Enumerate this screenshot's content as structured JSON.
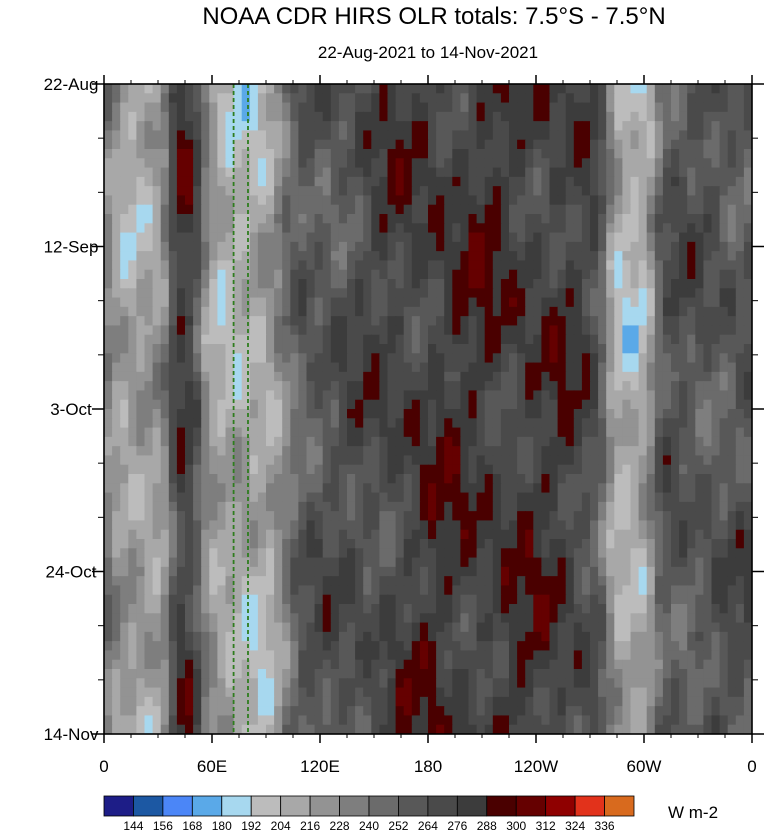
{
  "chart_data": {
    "type": "heatmap",
    "title": "NOAA CDR HIRS OLR totals: 7.5°S - 7.5°N",
    "subtitle": "22-Aug-2021 to 14-Nov-2021",
    "units": "W m-2",
    "x_ticks": [
      {
        "lon": 0,
        "label": "0"
      },
      {
        "lon": 60,
        "label": "60E"
      },
      {
        "lon": 120,
        "label": "120E"
      },
      {
        "lon": 180,
        "label": "180"
      },
      {
        "lon": 240,
        "label": "120W"
      },
      {
        "lon": 300,
        "label": "60W"
      },
      {
        "lon": 360,
        "label": "0"
      }
    ],
    "xlim": [
      0,
      360
    ],
    "y_ticks": [
      {
        "day": 0,
        "label": "22-Aug"
      },
      {
        "day": 21,
        "label": "12-Sep"
      },
      {
        "day": 42,
        "label": "3-Oct"
      },
      {
        "day": 63,
        "label": "24-Oct"
      },
      {
        "day": 84,
        "label": "14-Nov"
      }
    ],
    "ylim": [
      0,
      84
    ],
    "y_reversed": true,
    "reference_lines_lon": [
      72,
      80
    ],
    "reference_line_color": "#2f7d1e",
    "contour_levels": [
      144,
      156,
      168,
      180,
      192,
      204,
      216,
      228,
      240,
      252,
      264,
      276,
      288,
      300,
      312,
      324,
      336
    ],
    "colorbar_colors": [
      "#1d1d87",
      "#1c58a3",
      "#4b86f7",
      "#5aa9e8",
      "#a7d8ef",
      "#bcbcbc",
      "#a8a8a8",
      "#939393",
      "#7e7e7e",
      "#6b6b6b",
      "#585858",
      "#4a4a4a",
      "#3c3c3c",
      "#4a0000",
      "#650000",
      "#8f0000",
      "#e2321b",
      "#d86a1e"
    ],
    "features": [
      {
        "kind": "convective_band",
        "lon_start": 2,
        "lon_end": 36,
        "mean_olr": 212
      },
      {
        "kind": "convective_band",
        "lon_start": 55,
        "lon_end": 100,
        "mean_olr": 206
      },
      {
        "kind": "convective_band",
        "lon_start": 280,
        "lon_end": 305,
        "mean_olr": 204
      },
      {
        "kind": "dry_region",
        "lon_start": 38,
        "lon_end": 52,
        "mean_olr": 285
      },
      {
        "kind": "dry_region",
        "lon_start": 150,
        "lon_end": 270,
        "mean_olr": 280
      }
    ]
  }
}
